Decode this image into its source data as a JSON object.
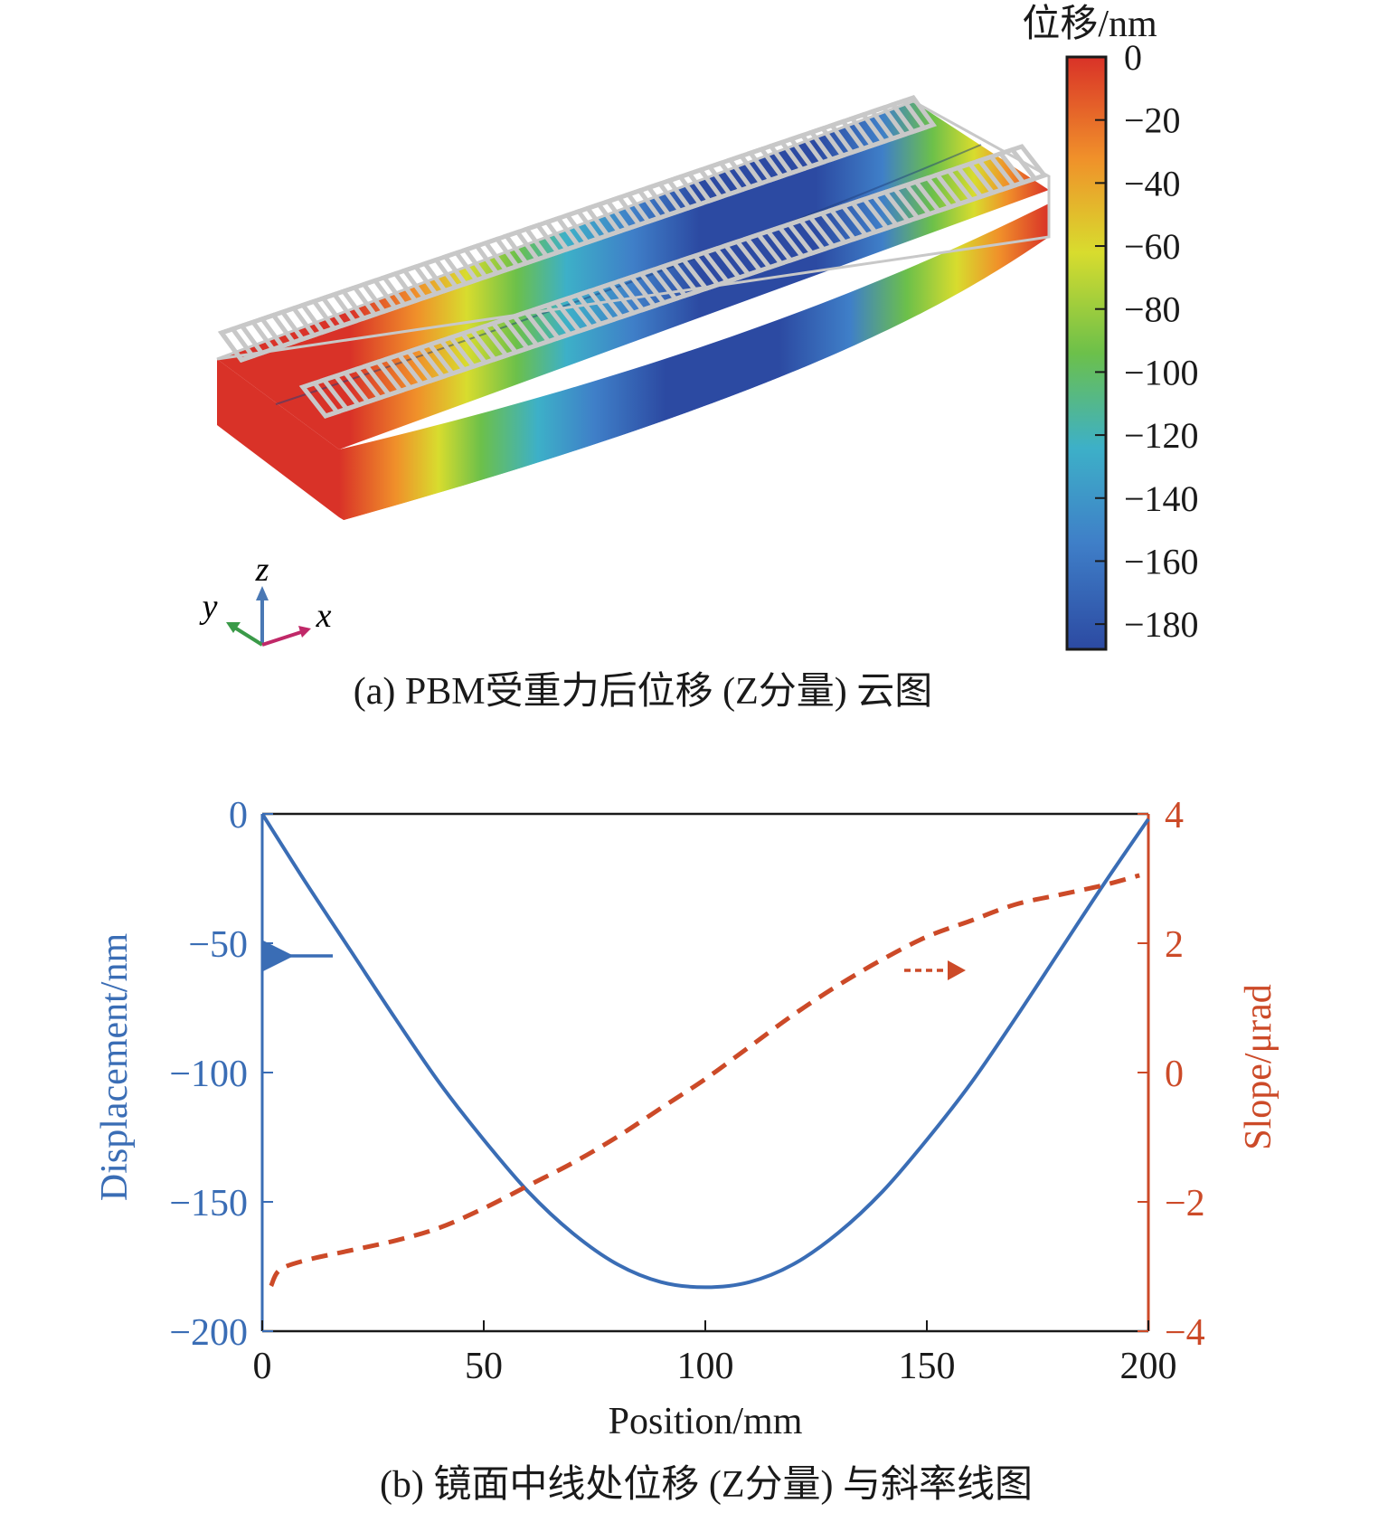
{
  "panel_a": {
    "caption": "(a) PBM受重力后位移 (Z分量) 云图",
    "colorbar": {
      "title": "位移/nm",
      "ticks": [
        0,
        -20,
        -40,
        -60,
        -80,
        -100,
        -120,
        -140,
        -160,
        -180
      ],
      "tick_labels": [
        "0",
        "−20",
        "−40",
        "−60",
        "−80",
        "−100",
        "−120",
        "−140",
        "−160",
        "−180"
      ],
      "range": [
        -188,
        0
      ],
      "colormap": [
        "#d93228",
        "#f0902a",
        "#d8dc2e",
        "#6cc04a",
        "#3db0c8",
        "#3f7fc8",
        "#2c4aa2"
      ]
    },
    "axes_triad": {
      "z": "z",
      "y": "y",
      "x": "x"
    },
    "colors": {
      "z_axis": "#4a78b4",
      "y_axis": "#3a9a48",
      "x_axis": "#c02868"
    }
  },
  "chart_data": {
    "type": "line",
    "caption": "(b) 镜面中线处位移 (Z分量) 与斜率线图",
    "xlabel": "Position/mm",
    "ylabel_left": "Displacement/nm",
    "ylabel_right": "Slope/μrad",
    "xlim": [
      0,
      200
    ],
    "ylim_left": [
      -200,
      0
    ],
    "ylim_right": [
      -4,
      4
    ],
    "x_ticks": [
      0,
      50,
      100,
      150,
      200
    ],
    "y_ticks_left": [
      0,
      -50,
      -100,
      -150,
      -200
    ],
    "y_ticks_left_labels": [
      "0",
      "−50",
      "−100",
      "−150",
      "−200"
    ],
    "y_ticks_right": [
      4,
      2,
      0,
      -2,
      -4
    ],
    "y_ticks_right_labels": [
      "4",
      "2",
      "0",
      "−2",
      "−4"
    ],
    "grid": false,
    "series": [
      {
        "axis": "left",
        "color": "#3a6db5",
        "style": "solid",
        "x": [
          0,
          10,
          20,
          30,
          40,
          50,
          60,
          70,
          80,
          90,
          100,
          110,
          120,
          130,
          140,
          150,
          160,
          170,
          180,
          190,
          200
        ],
        "y": [
          0,
          -27,
          -53,
          -79,
          -104,
          -126,
          -146,
          -162,
          -174,
          -181,
          -183,
          -181,
          -174,
          -162,
          -146,
          -126,
          -104,
          -79,
          -53,
          -27,
          -2
        ]
      },
      {
        "axis": "right",
        "color": "#cc4a28",
        "style": "dashed",
        "x": [
          2,
          4,
          10,
          20,
          30,
          40,
          50,
          60,
          70,
          80,
          90,
          100,
          110,
          120,
          130,
          140,
          150,
          160,
          170,
          180,
          190,
          198
        ],
        "y": [
          -3.3,
          -3.05,
          -2.9,
          -2.75,
          -2.6,
          -2.4,
          -2.1,
          -1.75,
          -1.4,
          -1.0,
          -0.55,
          -0.1,
          0.4,
          0.9,
          1.35,
          1.75,
          2.1,
          2.35,
          2.6,
          2.75,
          2.9,
          3.05
        ]
      }
    ],
    "annotations": [
      {
        "type": "arrow",
        "direction": "left",
        "series": "displacement"
      },
      {
        "type": "arrow",
        "direction": "right",
        "series": "slope"
      }
    ]
  }
}
